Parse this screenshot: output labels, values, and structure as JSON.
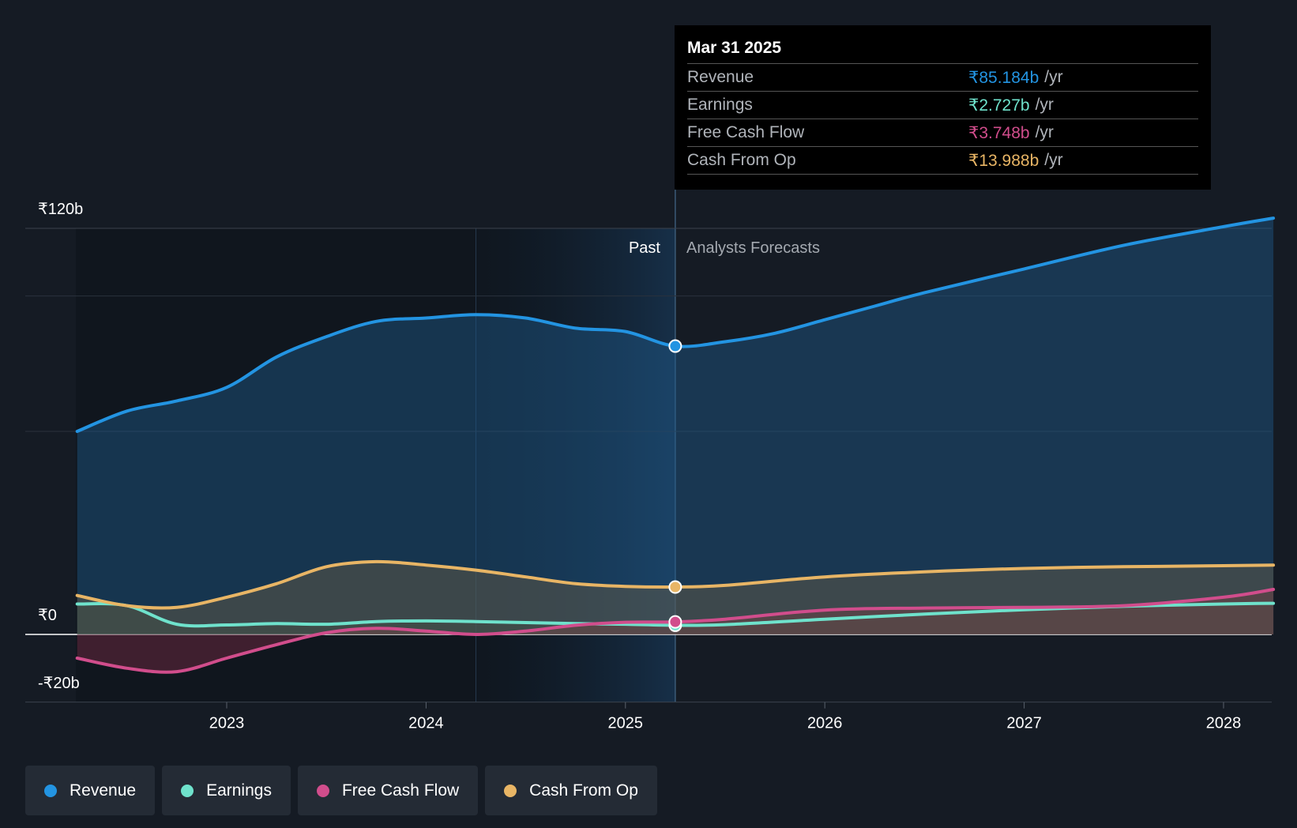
{
  "chart_data": {
    "type": "area",
    "y_labels": {
      "top": "₹120b",
      "zero": "₹0",
      "bottom": "-₹20b"
    },
    "ylim": [
      -20,
      120
    ],
    "x_ticks": [
      "2023",
      "2024",
      "2025",
      "2026",
      "2027",
      "2028"
    ],
    "past_label": "Past",
    "forecast_label": "Analysts Forecasts",
    "current_date": 2025.25,
    "series": [
      {
        "name": "Revenue",
        "color": "#2394e2",
        "x": [
          2022.25,
          2022.5,
          2022.75,
          2023.0,
          2023.25,
          2023.5,
          2023.75,
          2024.0,
          2024.25,
          2024.5,
          2024.75,
          2025.0,
          2025.25,
          2025.5,
          2025.75,
          2026.0,
          2026.25,
          2026.5,
          2027.0,
          2027.5,
          2028.0,
          2028.25
        ],
        "values": [
          60,
          66,
          69,
          73,
          82,
          88,
          92.5,
          93.5,
          94.5,
          93.5,
          90.5,
          89.5,
          85.2,
          86.5,
          89,
          93,
          97,
          101,
          108,
          115,
          120.5,
          123
        ]
      },
      {
        "name": "Earnings",
        "color": "#6fe2cc",
        "x": [
          2022.25,
          2022.5,
          2022.75,
          2023.0,
          2023.25,
          2023.5,
          2023.75,
          2024.0,
          2024.25,
          2024.5,
          2024.75,
          2025.0,
          2025.25,
          2025.5,
          2026.0,
          2026.5,
          2027.0,
          2027.5,
          2028.0,
          2028.25
        ],
        "values": [
          9,
          8.5,
          3,
          2.8,
          3.2,
          3,
          3.8,
          4,
          3.8,
          3.5,
          3.2,
          3,
          2.7,
          2.9,
          4.5,
          6,
          7.3,
          8.3,
          9,
          9.2
        ]
      },
      {
        "name": "Free Cash Flow",
        "color": "#d14d8c",
        "x": [
          2022.25,
          2022.5,
          2022.75,
          2023.0,
          2023.25,
          2023.5,
          2023.75,
          2024.0,
          2024.25,
          2024.5,
          2024.75,
          2025.0,
          2025.25,
          2025.5,
          2026.0,
          2026.5,
          2027.0,
          2027.5,
          2028.0,
          2028.25
        ],
        "values": [
          -7,
          -10,
          -11,
          -7,
          -3,
          0.5,
          1.8,
          1,
          0,
          1,
          2.7,
          3.6,
          3.7,
          4.5,
          7.2,
          7.8,
          8,
          8.5,
          11,
          13.3
        ]
      },
      {
        "name": "Cash From Op",
        "color": "#e8b565",
        "x": [
          2022.25,
          2022.5,
          2022.75,
          2023.0,
          2023.25,
          2023.5,
          2023.75,
          2024.0,
          2024.25,
          2024.5,
          2024.75,
          2025.0,
          2025.25,
          2025.5,
          2026.0,
          2026.5,
          2027.0,
          2027.5,
          2028.0,
          2028.25
        ],
        "values": [
          11.5,
          8.5,
          8,
          11,
          15,
          20,
          21.5,
          20.5,
          19,
          17,
          15,
          14.2,
          14,
          14.5,
          17,
          18.5,
          19.5,
          20,
          20.3,
          20.5
        ]
      }
    ],
    "tooltip": {
      "date": "Mar 31 2025",
      "rows": [
        {
          "label": "Revenue",
          "value": "₹85.184b",
          "unit": "/yr",
          "color": "#2394e2"
        },
        {
          "label": "Earnings",
          "value": "₹2.727b",
          "unit": "/yr",
          "color": "#6fe2cc"
        },
        {
          "label": "Free Cash Flow",
          "value": "₹3.748b",
          "unit": "/yr",
          "color": "#d14d8c"
        },
        {
          "label": "Cash From Op",
          "value": "₹13.988b",
          "unit": "/yr",
          "color": "#e8b565"
        }
      ]
    }
  },
  "legend": [
    {
      "label": "Revenue",
      "color": "#2394e2"
    },
    {
      "label": "Earnings",
      "color": "#6fe2cc"
    },
    {
      "label": "Free Cash Flow",
      "color": "#d14d8c"
    },
    {
      "label": "Cash From Op",
      "color": "#e8b565"
    }
  ]
}
